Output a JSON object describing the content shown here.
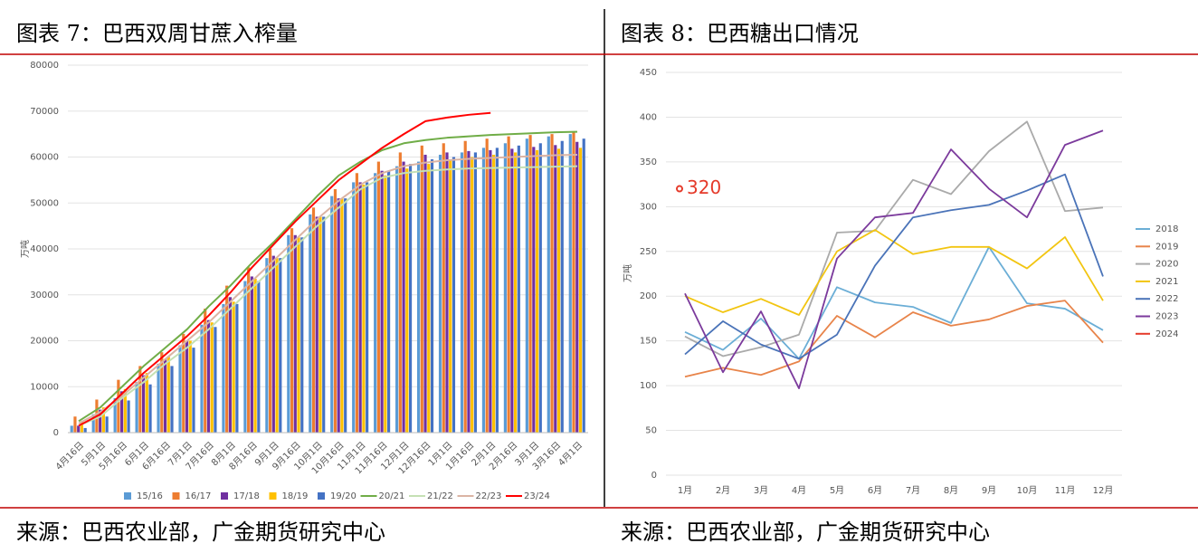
{
  "chart_data": [
    {
      "type": "combo",
      "title": "图表 7：巴西双周甘蔗入榨量",
      "source": "来源：巴西农业部，广金期货研究中心",
      "ylabel": "万吨",
      "categories": [
        "4月16日",
        "5月1日",
        "5月16日",
        "6月1日",
        "6月16日",
        "7月1日",
        "7月16日",
        "8月1日",
        "8月16日",
        "9月1日",
        "9月16日",
        "10月1日",
        "10月16日",
        "11月1日",
        "11月16日",
        "12月1日",
        "12月16日",
        "1月1日",
        "1月16日",
        "2月1日",
        "2月16日",
        "3月1日",
        "3月16日",
        "4月1日"
      ],
      "ylim": [
        0,
        80000
      ],
      "yticks": [
        0,
        10000,
        20000,
        30000,
        40000,
        50000,
        60000,
        70000,
        80000
      ],
      "grid": true,
      "series": [
        {
          "name": "15/16",
          "type": "bar",
          "color": "#5b9bd5",
          "values": [
            1500,
            4000,
            7500,
            11000,
            15000,
            19000,
            23500,
            28000,
            33000,
            38000,
            43000,
            47500,
            51500,
            54500,
            56500,
            58000,
            59000,
            60500,
            61000,
            62000,
            63000,
            64000,
            64500,
            65000
          ]
        },
        {
          "name": "16/17",
          "type": "bar",
          "color": "#ed7d31",
          "values": [
            3500,
            7200,
            11500,
            14500,
            17500,
            21500,
            27000,
            32000,
            36000,
            40000,
            44500,
            49000,
            53000,
            56500,
            59000,
            61000,
            62500,
            63000,
            63500,
            64000,
            64500,
            64800,
            65000,
            65500
          ]
        },
        {
          "name": "17/18",
          "type": "bar",
          "color": "#7030a0",
          "values": [
            1500,
            5000,
            9000,
            12500,
            16000,
            20000,
            24500,
            29500,
            34000,
            38500,
            43000,
            47000,
            51000,
            54500,
            57000,
            59000,
            60500,
            61000,
            61300,
            61500,
            61800,
            62200,
            62600,
            63300
          ]
        },
        {
          "name": "18/19",
          "type": "bar",
          "color": "#ffc000",
          "values": [
            2500,
            5500,
            9500,
            13000,
            16500,
            20000,
            24000,
            28500,
            33500,
            38000,
            42500,
            47000,
            51000,
            54000,
            56000,
            57500,
            58500,
            59500,
            60000,
            60500,
            61000,
            61500,
            61800,
            62000
          ]
        },
        {
          "name": "19/20",
          "type": "bar",
          "color": "#4472c4",
          "values": [
            1000,
            3500,
            7000,
            10500,
            14500,
            18500,
            23000,
            28000,
            33000,
            38000,
            42500,
            47000,
            51000,
            54500,
            57000,
            58500,
            59500,
            60000,
            61000,
            62000,
            62500,
            63000,
            63500,
            64000
          ]
        },
        {
          "name": "20/21",
          "type": "line",
          "color": "#70ad47",
          "values": [
            2500,
            5500,
            10000,
            14500,
            18500,
            22500,
            27500,
            32000,
            37000,
            41500,
            46500,
            51500,
            56000,
            59000,
            61500,
            63000,
            63700,
            64200,
            64500,
            64800,
            65000,
            65200,
            65400,
            65500
          ]
        },
        {
          "name": "21/22",
          "type": "line",
          "color": "#c5e0b4",
          "values": [
            1500,
            3500,
            7500,
            11000,
            15000,
            18500,
            22500,
            27000,
            31500,
            36000,
            40500,
            45000,
            49000,
            53000,
            55500,
            56500,
            57000,
            57300,
            57500,
            57600,
            57700,
            57800,
            57900,
            58000
          ]
        },
        {
          "name": "22/23",
          "type": "line",
          "color": "#dbb4a4",
          "values": [
            2000,
            4500,
            8000,
            12000,
            16000,
            20000,
            24000,
            28500,
            33000,
            37500,
            42000,
            46500,
            50500,
            54000,
            56500,
            58000,
            58800,
            59300,
            59600,
            59800,
            60000,
            60200,
            60400,
            60500
          ]
        },
        {
          "name": "23/24",
          "type": "line",
          "color": "#ff0000",
          "values": [
            1500,
            4000,
            8500,
            13000,
            17000,
            21000,
            25500,
            30500,
            36000,
            41000,
            46000,
            50500,
            55000,
            58500,
            62000,
            65000,
            67800,
            68600,
            69200,
            69600,
            null,
            null,
            null,
            null
          ]
        }
      ]
    },
    {
      "type": "line",
      "title": "图表 8：巴西糖出口情况",
      "source": "来源：巴西农业部，广金期货研究中心",
      "ylabel": "万吨",
      "categories": [
        "1月",
        "2月",
        "3月",
        "4月",
        "5月",
        "6月",
        "7月",
        "8月",
        "9月",
        "10月",
        "11月",
        "12月"
      ],
      "ylim": [
        0,
        450
      ],
      "yticks": [
        0,
        50,
        100,
        150,
        200,
        250,
        300,
        350,
        400,
        450
      ],
      "grid": true,
      "legend": "right",
      "series": [
        {
          "name": "2018",
          "color": "#6baed6",
          "values": [
            160,
            140,
            175,
            130,
            210,
            193,
            188,
            170,
            255,
            192,
            186,
            162
          ]
        },
        {
          "name": "2019",
          "color": "#e8844a",
          "values": [
            110,
            120,
            112,
            127,
            178,
            154,
            182,
            167,
            174,
            189,
            195,
            148
          ]
        },
        {
          "name": "2020",
          "color": "#aaaaaa",
          "values": [
            155,
            133,
            143,
            157,
            271,
            273,
            330,
            314,
            362,
            395,
            295,
            299
          ]
        },
        {
          "name": "2021",
          "color": "#f2c511",
          "values": [
            200,
            182,
            197,
            179,
            250,
            274,
            247,
            255,
            255,
            231,
            266,
            195
          ]
        },
        {
          "name": "2022",
          "color": "#4a73b8",
          "values": [
            135,
            172,
            146,
            130,
            157,
            234,
            288,
            296,
            302,
            318,
            336,
            222
          ]
        },
        {
          "name": "2023",
          "color": "#7b3a9c",
          "values": [
            203,
            115,
            183,
            97,
            242,
            288,
            293,
            364,
            320,
            288,
            369,
            385
          ]
        },
        {
          "name": "2024",
          "color": "#e53a2a",
          "values": [
            320,
            null,
            null,
            null,
            null,
            null,
            null,
            null,
            null,
            null,
            null,
            null
          ],
          "value_labels": [
            "320",
            null,
            null,
            null,
            null,
            null,
            null,
            null,
            null,
            null,
            null,
            null
          ]
        }
      ]
    }
  ]
}
